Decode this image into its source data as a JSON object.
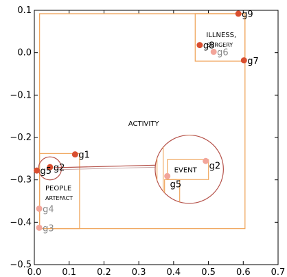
{
  "chart_data": {
    "type": "scatter",
    "xlim": [
      0.0,
      0.7
    ],
    "ylim": [
      -0.5,
      0.1
    ],
    "xticks": [
      "0.0",
      "0.1",
      "0.2",
      "0.3",
      "0.4",
      "0.5",
      "0.6",
      "0.7"
    ],
    "yticks": [
      "0.1",
      "0.0",
      "−0.1",
      "−0.2",
      "−0.3",
      "−0.4",
      "−0.5"
    ],
    "xtick_values": [
      0.0,
      0.1,
      0.2,
      0.3,
      0.4,
      0.5,
      0.6,
      0.7
    ],
    "ytick_values": [
      0.1,
      0.0,
      -0.1,
      -0.2,
      -0.3,
      -0.4,
      -0.5
    ],
    "grid": false,
    "colors": {
      "box": "#f0a860",
      "point_dark": "#d94f30",
      "point_light": "#f2a59a",
      "zoom": "#b5524a",
      "label_dark": "#000000",
      "label_light": "#888888"
    },
    "regions": [
      {
        "label": "ACTIVITY",
        "x0": 0.015,
        "x1": 0.605,
        "y0": -0.415,
        "y1": 0.092
      },
      {
        "label": "ILLNESS, SURGERY",
        "x0": 0.462,
        "x1": 0.605,
        "y0": -0.02,
        "y1": 0.092
      },
      {
        "label": "PEOPLE ARTEFACT",
        "x0": 0.015,
        "x1": 0.13,
        "y0": -0.415,
        "y1": -0.238
      }
    ],
    "points": [
      {
        "label": "g9",
        "x": 0.586,
        "y": 0.092,
        "tone": "dark"
      },
      {
        "label": "g8",
        "x": 0.475,
        "y": 0.018,
        "tone": "dark"
      },
      {
        "label": "g6",
        "x": 0.515,
        "y": 0.002,
        "tone": "light"
      },
      {
        "label": "g7",
        "x": 0.602,
        "y": -0.018,
        "tone": "dark"
      },
      {
        "label": "g1",
        "x": 0.117,
        "y": -0.24,
        "tone": "dark"
      },
      {
        "label": "g2",
        "x": 0.045,
        "y": -0.27,
        "tone": "dark"
      },
      {
        "label": "g5",
        "x": 0.007,
        "y": -0.278,
        "tone": "dark"
      },
      {
        "label": "g4",
        "x": 0.014,
        "y": -0.368,
        "tone": "light"
      },
      {
        "label": "g3",
        "x": 0.014,
        "y": -0.413,
        "tone": "light"
      }
    ],
    "inset": {
      "source_circle": {
        "cx": 0.045,
        "cy": -0.273,
        "r_x": 0.033
      },
      "target_circle": {
        "cx": 0.445,
        "cy": -0.275,
        "r_x": 0.098
      },
      "region_label": "EVENT",
      "points": [
        {
          "label": "g2",
          "x": 0.497,
          "y": -0.259,
          "tone": "light"
        },
        {
          "label": "g5",
          "x": 0.39,
          "y": -0.298,
          "tone": "light"
        }
      ]
    }
  }
}
